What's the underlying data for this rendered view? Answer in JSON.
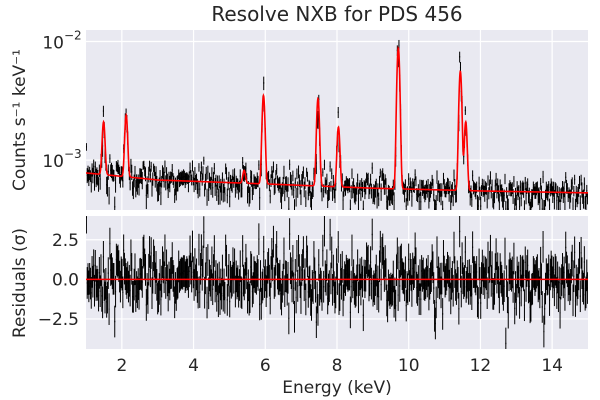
{
  "chart_data": [
    {
      "type": "line",
      "panel": "spectrum",
      "title": "Resolve NXB for PDS 456",
      "ylabel": "Counts s⁻¹ keV⁻¹",
      "xlabel": "",
      "yscale": "log",
      "xlim": [
        1,
        15
      ],
      "ylim": [
        0.00038,
        0.0125
      ],
      "grid": true,
      "ytick_labels": [
        {
          "value": 0.001,
          "base": "10",
          "exp": "−3"
        },
        {
          "value": 0.01,
          "base": "10",
          "exp": "−2"
        }
      ],
      "continuum": {
        "x": [
          1.0,
          3.0,
          6.0,
          9.0,
          12.0,
          15.0
        ],
        "y": [
          0.00078,
          0.00068,
          0.00063,
          0.00058,
          0.00055,
          0.00053
        ]
      },
      "model_lines": [
        {
          "energy": 1.49,
          "peak": 0.0021
        },
        {
          "energy": 2.12,
          "peak": 0.0024
        },
        {
          "energy": 5.41,
          "peak": 0.00082
        },
        {
          "energy": 5.95,
          "peak": 0.0035
        },
        {
          "energy": 7.47,
          "peak": 0.0033
        },
        {
          "energy": 8.04,
          "peak": 0.0019
        },
        {
          "energy": 9.71,
          "peak": 0.0088
        },
        {
          "energy": 11.44,
          "peak": 0.0056
        },
        {
          "energy": 11.59,
          "peak": 0.0021
        }
      ],
      "data_points": {
        "x_start": 1.0,
        "x_end": 15.0,
        "count": 620,
        "scatter_fraction": 0.17,
        "error_fraction": 0.13
      }
    },
    {
      "type": "scatter",
      "panel": "residuals",
      "ylabel": "Residuals (σ)",
      "xlabel": "Energy (keV)",
      "xlim": [
        1,
        15
      ],
      "ylim": [
        -4.4,
        4.0
      ],
      "grid": true,
      "xticks": [
        2,
        4,
        6,
        8,
        10,
        12,
        14
      ],
      "yticks": [
        2.5,
        0.0,
        -2.5
      ],
      "ytick_labels": [
        "2.5",
        "0.0",
        "−2.5"
      ],
      "zero_line": 0.0,
      "data_points": {
        "x_start": 1.0,
        "x_end": 15.0,
        "count": 620,
        "sigma": 1.0
      }
    }
  ],
  "colors": {
    "panel_bg": "#e9e9f1",
    "grid": "#ffffff",
    "data": "#000000",
    "model": "#ff0000",
    "text": "#262626"
  }
}
